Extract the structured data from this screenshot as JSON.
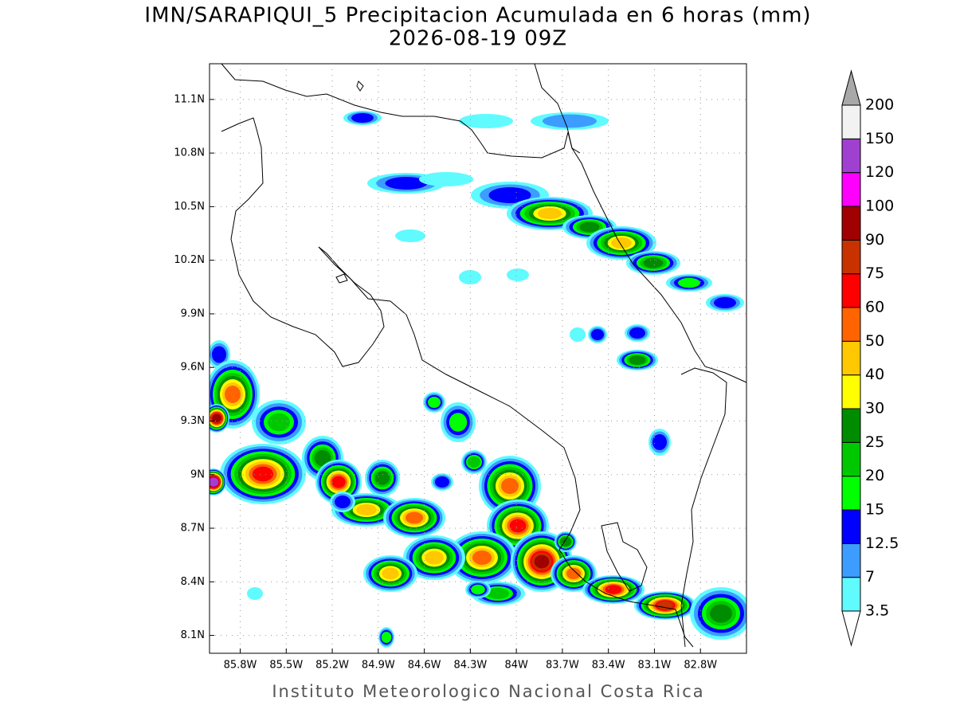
{
  "title": "IMN/SARAPIQUI_5 Precipitacion Acumulada en 6 horas (mm)",
  "subtitle": "2026-08-19 09Z",
  "footer": "Instituto Meteorologico Nacional Costa Rica",
  "map": {
    "lonlim": [
      -86.0,
      -82.5
    ],
    "latlim": [
      8.0,
      11.3
    ],
    "xticks": [
      {
        "value": -85.8,
        "label": "85.8W"
      },
      {
        "value": -85.5,
        "label": "85.5W"
      },
      {
        "value": -85.2,
        "label": "85.2W"
      },
      {
        "value": -84.9,
        "label": "84.9W"
      },
      {
        "value": -84.6,
        "label": "84.6W"
      },
      {
        "value": -84.3,
        "label": "84.3W"
      },
      {
        "value": -84.0,
        "label": "84W"
      },
      {
        "value": -83.7,
        "label": "83.7W"
      },
      {
        "value": -83.4,
        "label": "83.4W"
      },
      {
        "value": -83.1,
        "label": "83.1W"
      },
      {
        "value": -82.8,
        "label": "82.8W"
      }
    ],
    "yticks": [
      {
        "value": 8.1,
        "label": "8.1N"
      },
      {
        "value": 8.4,
        "label": "8.4N"
      },
      {
        "value": 8.7,
        "label": "8.7N"
      },
      {
        "value": 9.0,
        "label": "9N"
      },
      {
        "value": 9.3,
        "label": "9.3N"
      },
      {
        "value": 9.6,
        "label": "9.6N"
      },
      {
        "value": 9.9,
        "label": "9.9N"
      },
      {
        "value": 10.2,
        "label": "10.2N"
      },
      {
        "value": 10.5,
        "label": "10.5N"
      },
      {
        "value": 10.8,
        "label": "10.8N"
      },
      {
        "value": 11.1,
        "label": "11.1N"
      }
    ],
    "grid": true,
    "colorbar": {
      "levels": [
        3.5,
        7,
        12.5,
        15,
        20,
        25,
        30,
        40,
        50,
        60,
        75,
        90,
        100,
        120,
        150,
        200
      ],
      "colors": [
        "#ffffff",
        "#5ffbff",
        "#3c9cff",
        "#0000ff",
        "#00ff00",
        "#00c800",
        "#008c00",
        "#ffff00",
        "#ffc800",
        "#ff6400",
        "#ff0000",
        "#c83200",
        "#a00000",
        "#ff00ff",
        "#a040d0",
        "#f2f2f2",
        "#a8a8a8"
      ]
    }
  }
}
